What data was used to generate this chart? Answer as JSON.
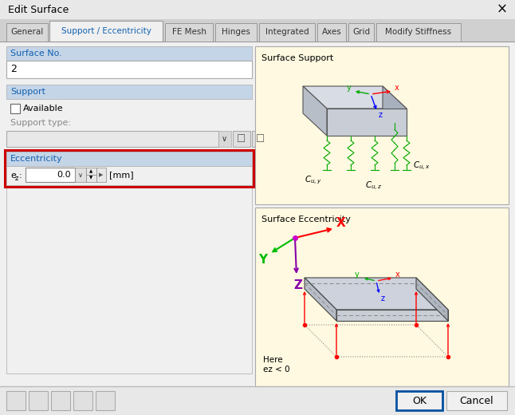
{
  "title": "Edit Surface",
  "bg_color": "#f0f0f0",
  "tabs": [
    "General",
    "Support / Eccentricity",
    "FE Mesh",
    "Hinges",
    "Integrated",
    "Axes",
    "Grid",
    "Modify Stiffness"
  ],
  "active_tab": 1,
  "surface_no_label": "Surface No.",
  "surface_no_value": "2",
  "support_label": "Support",
  "available_label": "Available",
  "support_type_label": "Support type:",
  "eccentricity_label": "Eccentricity",
  "ez_label": "ez:",
  "ez_value": "0.0",
  "ez_unit": "[mm]",
  "surface_support_label": "Surface Support",
  "surface_eccentricity_label": "Surface Eccentricity",
  "here_line1": "Here",
  "here_line2": "ez < 0",
  "ok_label": "OK",
  "cancel_label": "Cancel",
  "eccentricity_border_color": "#cc0000",
  "close_x": "×",
  "right_panel_bg": "#fef9e0",
  "section_header_bg": "#c5d5e8",
  "tab_widths": [
    52,
    142,
    60,
    52,
    70,
    36,
    32,
    106
  ],
  "tab_x": [
    8,
    62,
    207,
    270,
    325,
    398,
    437,
    472
  ]
}
